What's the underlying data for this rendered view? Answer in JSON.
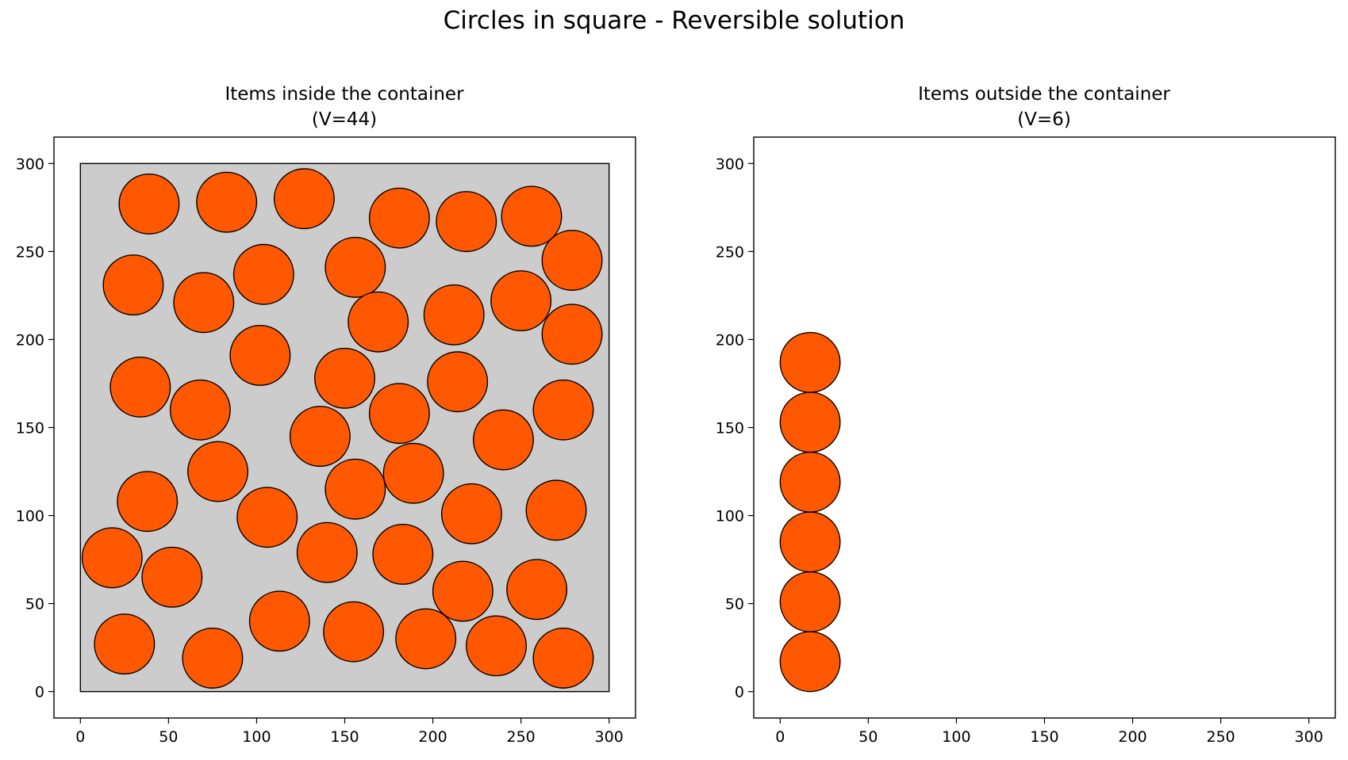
{
  "figure": {
    "suptitle": "Circles in square - Reversible solution"
  },
  "chart_data": [
    {
      "type": "scatter",
      "title_line1": "Items inside the container",
      "title_line2": "(V=44)",
      "xlabel": "",
      "ylabel": "",
      "xlim": [
        -15,
        315
      ],
      "ylim": [
        -15,
        315
      ],
      "xticks": [
        "0",
        "50",
        "100",
        "150",
        "200",
        "250",
        "300"
      ],
      "yticks": [
        "0",
        "50",
        "100",
        "150",
        "200",
        "250",
        "300"
      ],
      "grid": false,
      "container": {
        "x": 0,
        "y": 0,
        "width": 300,
        "height": 300,
        "fill": "#cccccc",
        "edge": "#000000"
      },
      "circle_radius": 17,
      "circle_fill": "#ff5800",
      "circle_edge": "#000000",
      "circles": [
        [
          39,
          277
        ],
        [
          83,
          278
        ],
        [
          127,
          280
        ],
        [
          181,
          269
        ],
        [
          219,
          267
        ],
        [
          256,
          270
        ],
        [
          279,
          245
        ],
        [
          30,
          231
        ],
        [
          70,
          221
        ],
        [
          104,
          237
        ],
        [
          156,
          241
        ],
        [
          250,
          222
        ],
        [
          169,
          210
        ],
        [
          212,
          214
        ],
        [
          279,
          203
        ],
        [
          102,
          191
        ],
        [
          34,
          173
        ],
        [
          150,
          178
        ],
        [
          214,
          176
        ],
        [
          68,
          160
        ],
        [
          181,
          158
        ],
        [
          274,
          160
        ],
        [
          136,
          145
        ],
        [
          240,
          143
        ],
        [
          78,
          125
        ],
        [
          189,
          124
        ],
        [
          38,
          108
        ],
        [
          156,
          115
        ],
        [
          106,
          99
        ],
        [
          222,
          101
        ],
        [
          270,
          103
        ],
        [
          18,
          76
        ],
        [
          52,
          65
        ],
        [
          140,
          79
        ],
        [
          183,
          78
        ],
        [
          217,
          57
        ],
        [
          259,
          58
        ],
        [
          113,
          40
        ],
        [
          155,
          34
        ],
        [
          196,
          30
        ],
        [
          25,
          27
        ],
        [
          75,
          19
        ],
        [
          236,
          26
        ],
        [
          274,
          19
        ]
      ]
    },
    {
      "type": "scatter",
      "title_line1": "Items outside the container",
      "title_line2": "(V=6)",
      "xlabel": "",
      "ylabel": "",
      "xlim": [
        -15,
        315
      ],
      "ylim": [
        -15,
        315
      ],
      "xticks": [
        "0",
        "50",
        "100",
        "150",
        "200",
        "250",
        "300"
      ],
      "yticks": [
        "0",
        "50",
        "100",
        "150",
        "200",
        "250",
        "300"
      ],
      "grid": false,
      "container": null,
      "circle_radius": 17,
      "circle_fill": "#ff5800",
      "circle_edge": "#000000",
      "circles": [
        [
          17,
          17
        ],
        [
          17,
          51
        ],
        [
          17,
          85
        ],
        [
          17,
          119
        ],
        [
          17,
          153
        ],
        [
          17,
          187
        ]
      ]
    }
  ]
}
